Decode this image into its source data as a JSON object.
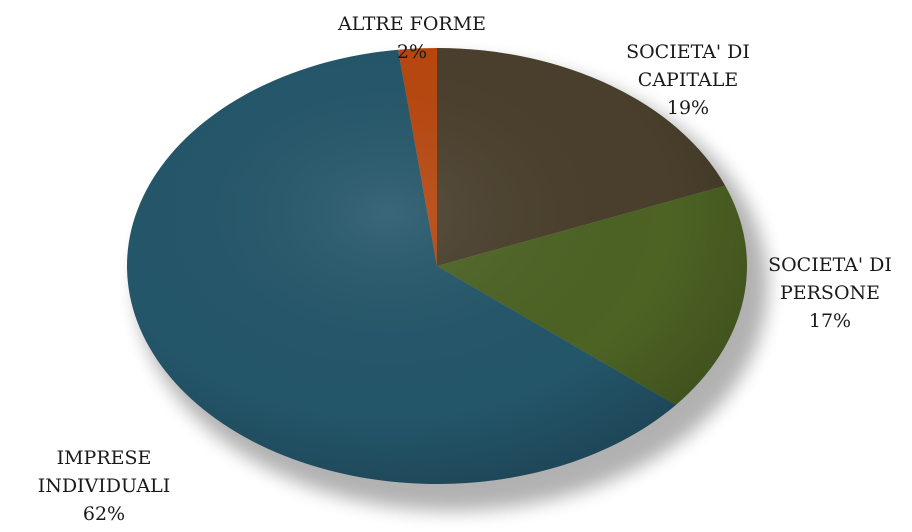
{
  "chart_data": {
    "type": "pie",
    "title": "",
    "start_angle_deg": 0,
    "direction": "clockwise",
    "legend": "none",
    "slices": [
      {
        "name": "SOCIETA' DI CAPITALE",
        "label_lines": [
          "SOCIETA' DI",
          "CAPITALE"
        ],
        "value": 19,
        "value_label": "19%",
        "color": "#4a3f2c"
      },
      {
        "name": "SOCIETA' DI PERSONE",
        "label_lines": [
          "SOCIETA' DI",
          "PERSONE"
        ],
        "value": 17,
        "value_label": "17%",
        "color": "#4d6324"
      },
      {
        "name": "IMPRESE INDIVIDUALI",
        "label_lines": [
          "IMPRESE",
          "INDIVIDUALI"
        ],
        "value": 62,
        "value_label": "62%",
        "color": "#24566a"
      },
      {
        "name": "ALTRE FORME",
        "label_lines": [
          "ALTRE FORME"
        ],
        "value": 2,
        "value_label": "2%",
        "color": "#b8470e"
      }
    ]
  }
}
